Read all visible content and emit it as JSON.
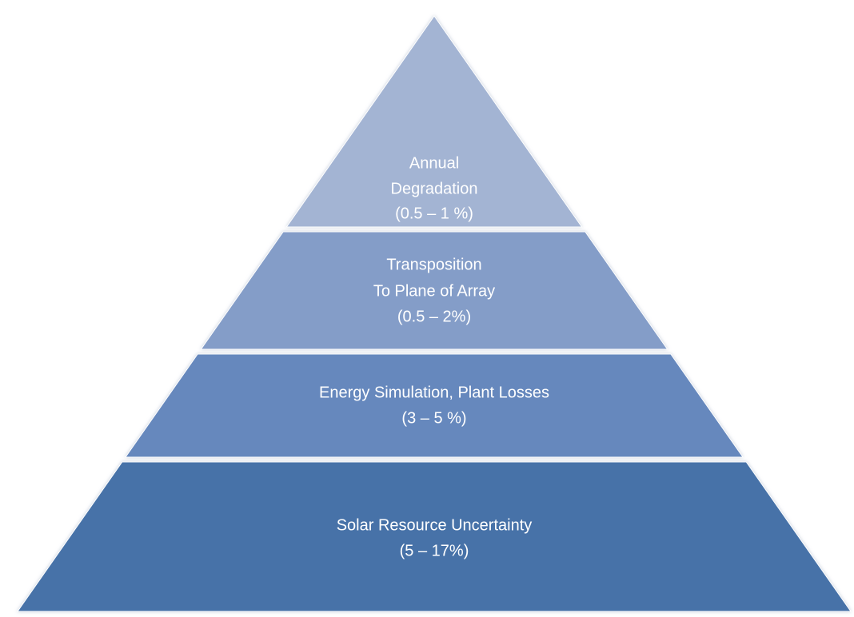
{
  "layers": [
    {
      "lines": [
        "Annual",
        "Degradation",
        "(0.5 – 1 %)"
      ]
    },
    {
      "lines": [
        "Transposition",
        "To Plane of Array",
        "(0.5 – 2%)"
      ]
    },
    {
      "lines": [
        "Energy Simulation, Plant Losses",
        "(3 – 5 %)"
      ]
    },
    {
      "lines": [
        "Solar Resource Uncertainty",
        "(5 – 17%)"
      ]
    }
  ]
}
